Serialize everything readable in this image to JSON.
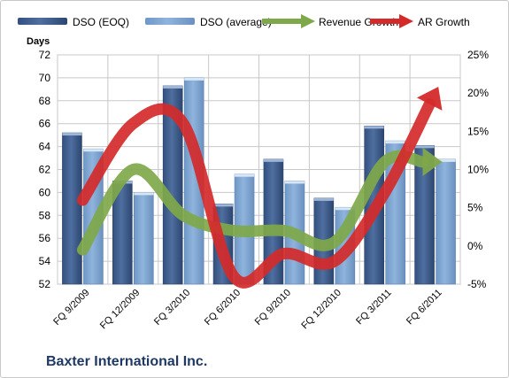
{
  "company": "Baxter International Inc.",
  "colors": {
    "bar_eoq": "#4f6fa0",
    "bar_avg": "#8fb4dc",
    "revenue_growth": "#7fa84a",
    "ar_growth": "#d42a2a",
    "plot_bg": "#ffffff",
    "grid": "#c8c8c8"
  },
  "chart_data": {
    "type": "bar",
    "categories": [
      "FQ 9/2009",
      "FQ 12/2009",
      "FQ 3/2010",
      "FQ 6/2010",
      "FQ 9/2010",
      "FQ 12/2010",
      "FQ 3/2011",
      "FQ 6/2011"
    ],
    "ylabel": "Days",
    "ylim": [
      52,
      72
    ],
    "yticks": [
      "52",
      "54",
      "56",
      "58",
      "60",
      "62",
      "64",
      "66",
      "68",
      "70",
      "72"
    ],
    "y2lim": [
      -5,
      25
    ],
    "y2ticks": [
      "-5%",
      "0%",
      "5%",
      "10%",
      "15%",
      "20%",
      "25%"
    ],
    "grid": true,
    "legend_position": "top",
    "series": [
      {
        "name": "DSO (EOQ)",
        "kind": "bar",
        "axis": "left",
        "values": [
          65.2,
          61.0,
          69.3,
          59.0,
          62.9,
          59.5,
          65.8,
          64.1
        ]
      },
      {
        "name": "DSO (average)",
        "kind": "bar",
        "axis": "left",
        "values": [
          63.8,
          60.0,
          70.0,
          61.6,
          61.0,
          58.7,
          64.5,
          62.9
        ]
      },
      {
        "name": "Revenue Growth",
        "kind": "line-arrow",
        "axis": "right",
        "values": [
          -0.5,
          10.0,
          4.0,
          2.0,
          2.0,
          0.5,
          11.0,
          11.0
        ]
      },
      {
        "name": "AR Growth",
        "kind": "line-arrow",
        "axis": "right",
        "values": [
          6.0,
          16.0,
          16.0,
          -4.0,
          -1.0,
          -2.0,
          7.0,
          20.0
        ]
      }
    ]
  }
}
